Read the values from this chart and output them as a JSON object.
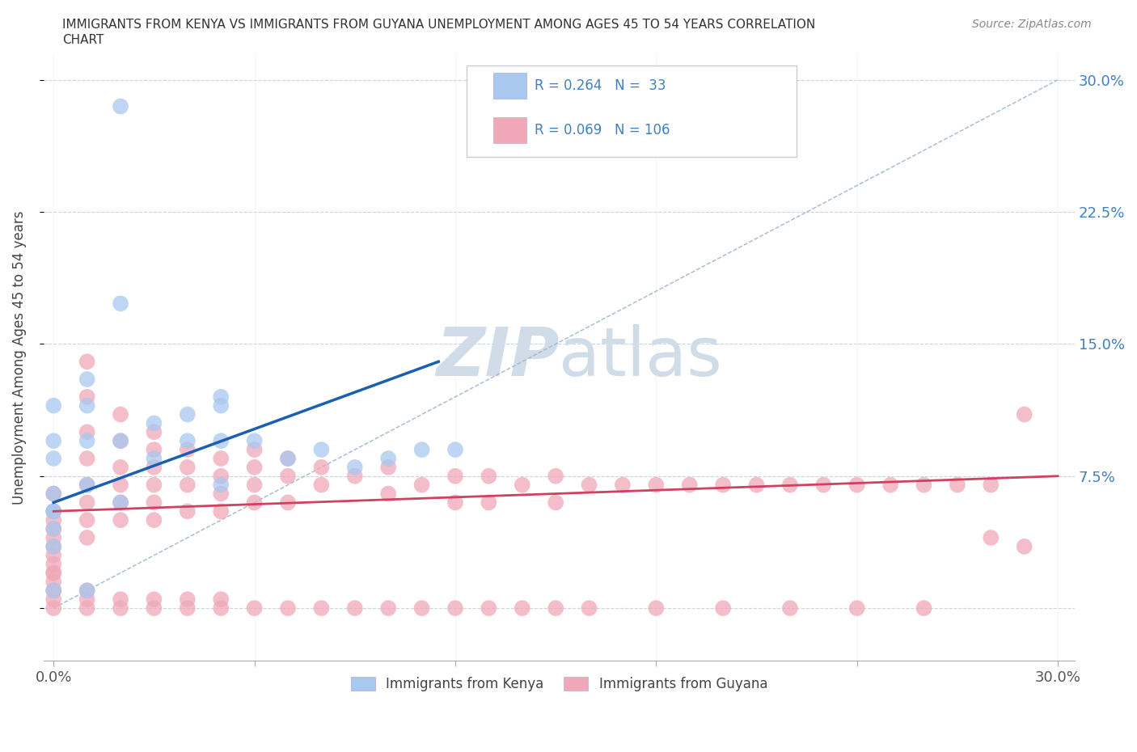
{
  "title_line1": "IMMIGRANTS FROM KENYA VS IMMIGRANTS FROM GUYANA UNEMPLOYMENT AMONG AGES 45 TO 54 YEARS CORRELATION",
  "title_line2": "CHART",
  "source": "Source: ZipAtlas.com",
  "ylabel": "Unemployment Among Ages 45 to 54 years",
  "kenya_R": 0.264,
  "kenya_N": 33,
  "guyana_R": 0.069,
  "guyana_N": 106,
  "kenya_color": "#a8c8f0",
  "guyana_color": "#f0a8b8",
  "kenya_line_color": "#1a5fb0",
  "guyana_line_color": "#d04060",
  "diag_line_color": "#a0b8d0",
  "watermark_color": "#d0dce8",
  "background_color": "#ffffff",
  "grid_color": "#c8d4e0",
  "right_tick_color": "#4080c0",
  "kenya_scatter_x": [
    0.02,
    0.02,
    0.01,
    0.0,
    0.0,
    0.0,
    0.01,
    0.01,
    0.0,
    0.0,
    0.0,
    0.0,
    0.01,
    0.02,
    0.03,
    0.03,
    0.04,
    0.04,
    0.05,
    0.05,
    0.05,
    0.06,
    0.07,
    0.08,
    0.09,
    0.1,
    0.11,
    0.12,
    0.0,
    0.01,
    0.02,
    0.0,
    0.05
  ],
  "kenya_scatter_y": [
    0.285,
    0.173,
    0.13,
    0.115,
    0.095,
    0.085,
    0.115,
    0.095,
    0.065,
    0.055,
    0.045,
    0.035,
    0.07,
    0.095,
    0.105,
    0.085,
    0.11,
    0.095,
    0.115,
    0.095,
    0.07,
    0.095,
    0.085,
    0.09,
    0.08,
    0.085,
    0.09,
    0.09,
    0.01,
    0.01,
    0.06,
    0.055,
    0.12
  ],
  "guyana_scatter_x": [
    0.0,
    0.0,
    0.0,
    0.0,
    0.0,
    0.0,
    0.0,
    0.0,
    0.0,
    0.0,
    0.01,
    0.01,
    0.01,
    0.01,
    0.01,
    0.01,
    0.01,
    0.01,
    0.02,
    0.02,
    0.02,
    0.02,
    0.02,
    0.02,
    0.03,
    0.03,
    0.03,
    0.03,
    0.03,
    0.03,
    0.04,
    0.04,
    0.04,
    0.04,
    0.05,
    0.05,
    0.05,
    0.05,
    0.06,
    0.06,
    0.06,
    0.06,
    0.07,
    0.07,
    0.07,
    0.08,
    0.08,
    0.09,
    0.1,
    0.1,
    0.11,
    0.12,
    0.12,
    0.13,
    0.13,
    0.14,
    0.15,
    0.15,
    0.16,
    0.17,
    0.18,
    0.19,
    0.2,
    0.21,
    0.22,
    0.23,
    0.24,
    0.25,
    0.26,
    0.27,
    0.28,
    0.29,
    0.0,
    0.0,
    0.0,
    0.0,
    0.0,
    0.01,
    0.01,
    0.01,
    0.02,
    0.02,
    0.03,
    0.03,
    0.04,
    0.04,
    0.05,
    0.05,
    0.06,
    0.07,
    0.08,
    0.09,
    0.1,
    0.11,
    0.12,
    0.13,
    0.14,
    0.15,
    0.16,
    0.18,
    0.2,
    0.22,
    0.24,
    0.26,
    0.28,
    0.29
  ],
  "guyana_scatter_y": [
    0.065,
    0.055,
    0.05,
    0.045,
    0.04,
    0.035,
    0.03,
    0.025,
    0.02,
    0.01,
    0.14,
    0.12,
    0.1,
    0.085,
    0.07,
    0.06,
    0.05,
    0.04,
    0.11,
    0.095,
    0.08,
    0.07,
    0.06,
    0.05,
    0.1,
    0.09,
    0.08,
    0.07,
    0.06,
    0.05,
    0.09,
    0.08,
    0.07,
    0.055,
    0.085,
    0.075,
    0.065,
    0.055,
    0.09,
    0.08,
    0.07,
    0.06,
    0.085,
    0.075,
    0.06,
    0.08,
    0.07,
    0.075,
    0.08,
    0.065,
    0.07,
    0.075,
    0.06,
    0.075,
    0.06,
    0.07,
    0.075,
    0.06,
    0.07,
    0.07,
    0.07,
    0.07,
    0.07,
    0.07,
    0.07,
    0.07,
    0.07,
    0.07,
    0.07,
    0.07,
    0.07,
    0.11,
    0.0,
    0.005,
    0.01,
    0.015,
    0.02,
    0.0,
    0.005,
    0.01,
    0.0,
    0.005,
    0.0,
    0.005,
    0.0,
    0.005,
    0.0,
    0.005,
    0.0,
    0.0,
    0.0,
    0.0,
    0.0,
    0.0,
    0.0,
    0.0,
    0.0,
    0.0,
    0.0,
    0.0,
    0.0,
    0.0,
    0.0,
    0.0,
    0.04,
    0.035
  ],
  "kenya_line_x": [
    0.0,
    0.115
  ],
  "kenya_line_y": [
    0.06,
    0.14
  ],
  "guyana_line_x": [
    0.0,
    0.3
  ],
  "guyana_line_y": [
    0.055,
    0.075
  ],
  "diag_line_x": [
    0.0,
    0.3
  ],
  "diag_line_y": [
    0.0,
    0.3
  ],
  "xlim": [
    -0.003,
    0.305
  ],
  "ylim": [
    -0.03,
    0.315
  ],
  "ytick_vals": [
    0.0,
    0.075,
    0.15,
    0.225,
    0.3
  ],
  "ytick_labels": [
    "",
    "7.5%",
    "15.0%",
    "22.5%",
    "30.0%"
  ],
  "xtick_vals": [
    0.0,
    0.06,
    0.12,
    0.18,
    0.24,
    0.3
  ],
  "xtick_labels": [
    "0.0%",
    "",
    "",
    "",
    "",
    "30.0%"
  ]
}
